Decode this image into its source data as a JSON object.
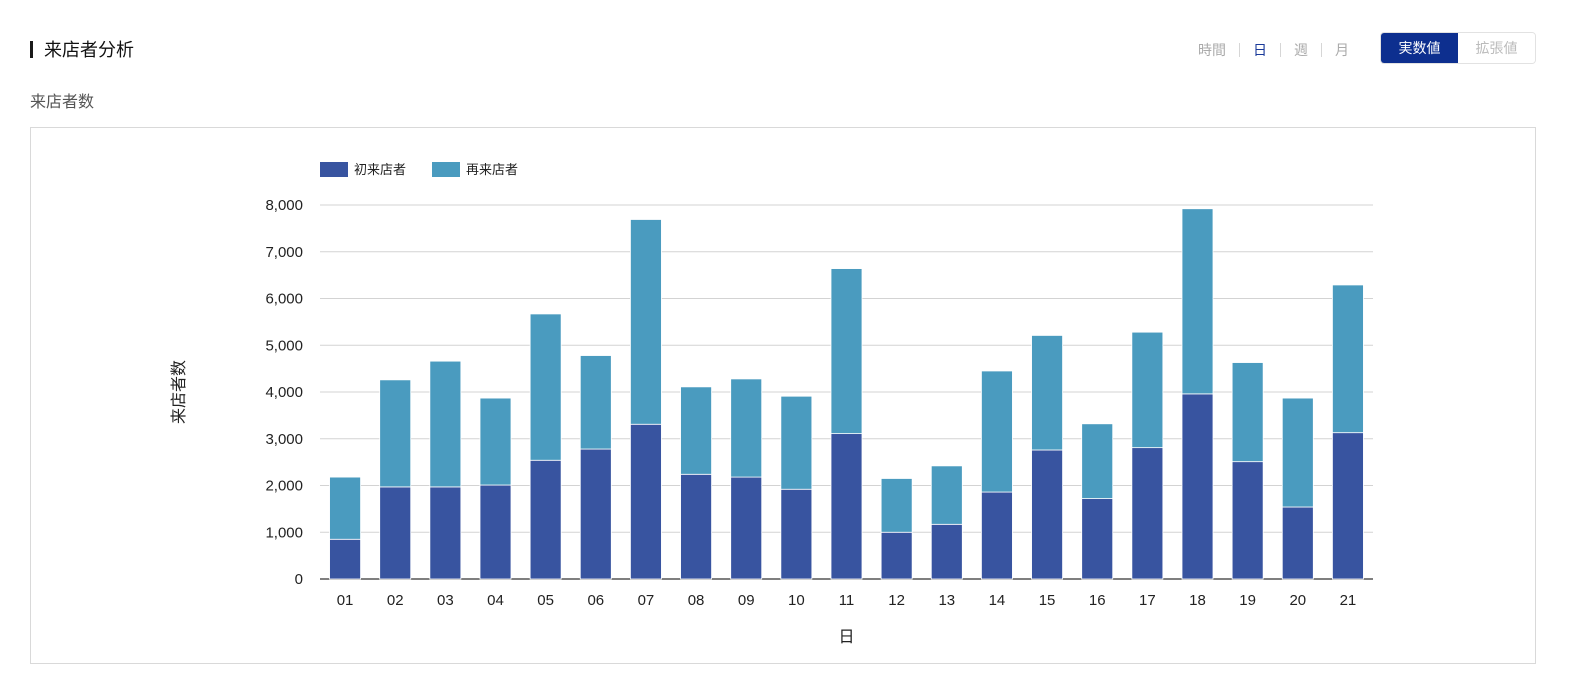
{
  "header": {
    "title": "来店者分析"
  },
  "subtitle": "来店者数",
  "period_tabs": [
    {
      "label": "時間",
      "active": false
    },
    {
      "label": "日",
      "active": true
    },
    {
      "label": "週",
      "active": false
    },
    {
      "label": "月",
      "active": false
    }
  ],
  "mode_toggle": {
    "actual_label": "実数値",
    "extended_label": "拡張値",
    "selected": "実数値"
  },
  "colors": {
    "first_visit": "#3854a0",
    "repeat_visit": "#4a9bbf",
    "accent": "#0d2f8f"
  },
  "chart_data": {
    "type": "bar",
    "stacked": true,
    "categories": [
      "01",
      "02",
      "03",
      "04",
      "05",
      "06",
      "07",
      "08",
      "09",
      "10",
      "11",
      "12",
      "13",
      "14",
      "15",
      "16",
      "17",
      "18",
      "19",
      "20",
      "21"
    ],
    "series": [
      {
        "name": "初来店者",
        "values": [
          850,
          1970,
          1970,
          2010,
          2540,
          2780,
          3310,
          2240,
          2180,
          1920,
          3110,
          1000,
          1170,
          1860,
          2760,
          1720,
          2810,
          3960,
          2510,
          1540,
          3130
        ]
      },
      {
        "name": "再来店者",
        "values": [
          1330,
          2290,
          2690,
          1860,
          3130,
          2000,
          4380,
          1870,
          2100,
          1990,
          3530,
          1150,
          1250,
          2590,
          2450,
          1600,
          2470,
          3960,
          2120,
          2330,
          3160
        ]
      }
    ],
    "xlabel": "日",
    "ylabel": "来店者数",
    "ylim": [
      0,
      8000
    ],
    "yticks": [
      0,
      1000,
      2000,
      3000,
      4000,
      5000,
      6000,
      7000,
      8000
    ],
    "grid": true,
    "legend_position": "top-left"
  }
}
